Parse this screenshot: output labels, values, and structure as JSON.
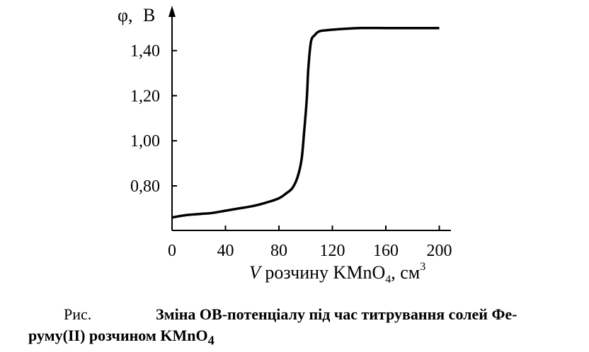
{
  "chart_data": {
    "type": "line",
    "y_axis_symbol": "φ,",
    "y_axis_unit": "В",
    "x_axis_title": {
      "var": "V",
      "text_a": " розчину KMnO",
      "sub": "4",
      "text_b": ", см",
      "sup": "3"
    },
    "x_ticks": [
      "0",
      "40",
      "80",
      "120",
      "160",
      "200"
    ],
    "y_ticks": [
      "0,80",
      "1,00",
      "1,20",
      "1,40"
    ],
    "xlim": [
      0,
      210
    ],
    "ylim": [
      0.63,
      1.56
    ],
    "series": [
      {
        "x": [
          0,
          10,
          20,
          30,
          40,
          50,
          60,
          70,
          80,
          85,
          90,
          94,
          97,
          99,
          100,
          101,
          102,
          104,
          107,
          110,
          115,
          125,
          140,
          160,
          180,
          200
        ],
        "y": [
          0.66,
          0.67,
          0.675,
          0.68,
          0.69,
          0.7,
          0.71,
          0.725,
          0.745,
          0.765,
          0.79,
          0.84,
          0.92,
          1.05,
          1.12,
          1.2,
          1.32,
          1.44,
          1.47,
          1.485,
          1.49,
          1.495,
          1.5,
          1.5,
          1.5,
          1.5
        ]
      }
    ]
  },
  "caption": {
    "fig_label": "Рис.",
    "text_line1": "Зміна ОВ-потенціалу під час титрування солей Фе-",
    "text_line2_a": "руму(II) розчином KMnO",
    "text_line2_sub": "4"
  }
}
